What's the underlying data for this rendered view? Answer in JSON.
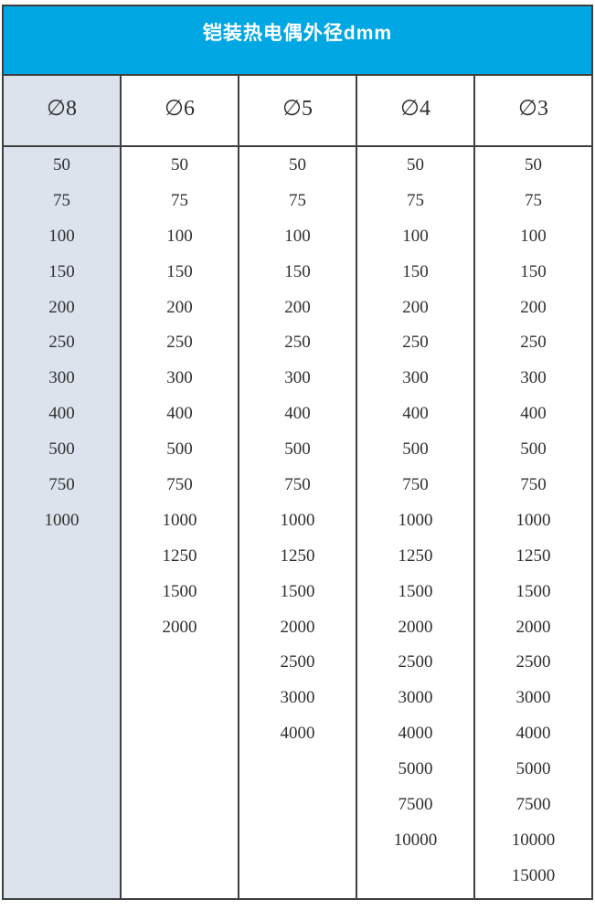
{
  "title": "铠装热电偶外径dmm",
  "colors": {
    "title_bg": "#00a7e3",
    "title_text": "#ffffff",
    "first_col_bg": "#dce3ed",
    "border": "#3f3f3f",
    "text": "#2f2f2f"
  },
  "table": {
    "columns": [
      {
        "header": "∅8",
        "shaded": true,
        "values": [
          "50",
          "75",
          "100",
          "150",
          "200",
          "250",
          "300",
          "400",
          "500",
          "750",
          "1000"
        ]
      },
      {
        "header": "∅6",
        "shaded": false,
        "values": [
          "50",
          "75",
          "100",
          "150",
          "200",
          "250",
          "300",
          "400",
          "500",
          "750",
          "1000",
          "1250",
          "1500",
          "2000"
        ]
      },
      {
        "header": "∅5",
        "shaded": false,
        "values": [
          "50",
          "75",
          "100",
          "150",
          "200",
          "250",
          "300",
          "400",
          "500",
          "750",
          "1000",
          "1250",
          "1500",
          "2000",
          "2500",
          "3000",
          "4000"
        ]
      },
      {
        "header": "∅4",
        "shaded": false,
        "values": [
          "50",
          "75",
          "100",
          "150",
          "200",
          "250",
          "300",
          "400",
          "500",
          "750",
          "1000",
          "1250",
          "1500",
          "2000",
          "2500",
          "3000",
          "4000",
          "5000",
          "7500",
          "10000"
        ]
      },
      {
        "header": "∅3",
        "shaded": false,
        "values": [
          "50",
          "75",
          "100",
          "150",
          "200",
          "250",
          "300",
          "400",
          "500",
          "750",
          "1000",
          "1250",
          "1500",
          "2000",
          "2500",
          "3000",
          "4000",
          "5000",
          "7500",
          "10000",
          "15000"
        ]
      }
    ]
  }
}
